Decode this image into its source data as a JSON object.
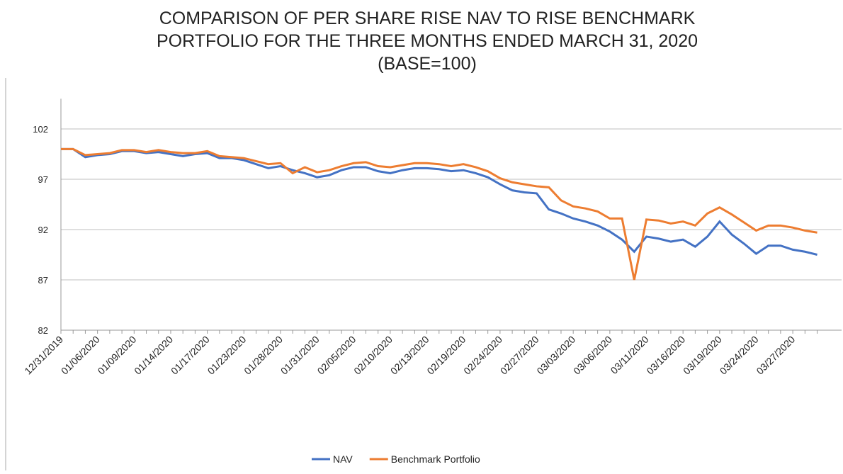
{
  "chart_data": {
    "type": "line",
    "title": [
      "COMPARISON OF PER SHARE RISE NAV TO RISE BENCHMARK",
      "PORTFOLIO FOR THE THREE MONTHS ENDED MARCH 31, 2020",
      "(BASE=100)"
    ],
    "categories": [
      "12/31/2019",
      null,
      null,
      "01/06/2020",
      null,
      null,
      "01/09/2020",
      null,
      null,
      "01/14/2020",
      null,
      null,
      "01/17/2020",
      null,
      null,
      "01/23/2020",
      null,
      null,
      "01/28/2020",
      null,
      null,
      "01/31/2020",
      null,
      null,
      "02/05/2020",
      null,
      null,
      "02/10/2020",
      null,
      null,
      "02/13/2020",
      null,
      null,
      "02/19/2020",
      null,
      null,
      "02/24/2020",
      null,
      null,
      "02/27/2020",
      null,
      null,
      "03/03/2020",
      null,
      null,
      "03/06/2020",
      null,
      null,
      "03/11/2020",
      null,
      null,
      "03/16/2020",
      null,
      null,
      "03/19/2020",
      null,
      null,
      "03/24/2020",
      null,
      null,
      "03/27/2020",
      null,
      null
    ],
    "series": [
      {
        "name": "NAV",
        "color": "#4472c4",
        "values": [
          100.0,
          100.0,
          99.2,
          99.4,
          99.5,
          99.8,
          99.8,
          99.6,
          99.7,
          99.5,
          99.3,
          99.5,
          99.6,
          99.1,
          99.1,
          98.9,
          98.5,
          98.1,
          98.3,
          97.9,
          97.6,
          97.2,
          97.4,
          97.9,
          98.2,
          98.2,
          97.8,
          97.6,
          97.9,
          98.1,
          98.1,
          98.0,
          97.8,
          97.9,
          97.6,
          97.2,
          96.5,
          95.9,
          95.7,
          95.6,
          94.0,
          93.6,
          93.1,
          92.8,
          92.4,
          91.8,
          91.0,
          89.8,
          91.3,
          91.1,
          90.8,
          91.0,
          90.3,
          91.3,
          92.8,
          91.5,
          90.6,
          89.6,
          90.4,
          90.4,
          90.0,
          89.8,
          89.5
        ]
      },
      {
        "name": "Benchmark Portfolio",
        "color": "#ed7d31",
        "values": [
          100.0,
          100.0,
          99.4,
          99.5,
          99.6,
          99.9,
          99.9,
          99.7,
          99.9,
          99.7,
          99.6,
          99.6,
          99.8,
          99.3,
          99.2,
          99.1,
          98.8,
          98.5,
          98.6,
          97.6,
          98.2,
          97.7,
          97.9,
          98.3,
          98.6,
          98.7,
          98.3,
          98.2,
          98.4,
          98.6,
          98.6,
          98.5,
          98.3,
          98.5,
          98.2,
          97.8,
          97.1,
          96.7,
          96.5,
          96.3,
          96.2,
          94.9,
          94.3,
          94.1,
          93.8,
          93.1,
          93.1,
          87.0,
          93.0,
          92.9,
          92.6,
          92.8,
          92.4,
          93.6,
          94.2,
          93.5,
          92.7,
          91.9,
          92.4,
          92.4,
          92.2,
          91.9,
          91.7
        ]
      }
    ],
    "ylim": [
      82,
      105
    ],
    "yticks": [
      82,
      87,
      92,
      97,
      102
    ],
    "grid": true,
    "legend": "bottom"
  }
}
